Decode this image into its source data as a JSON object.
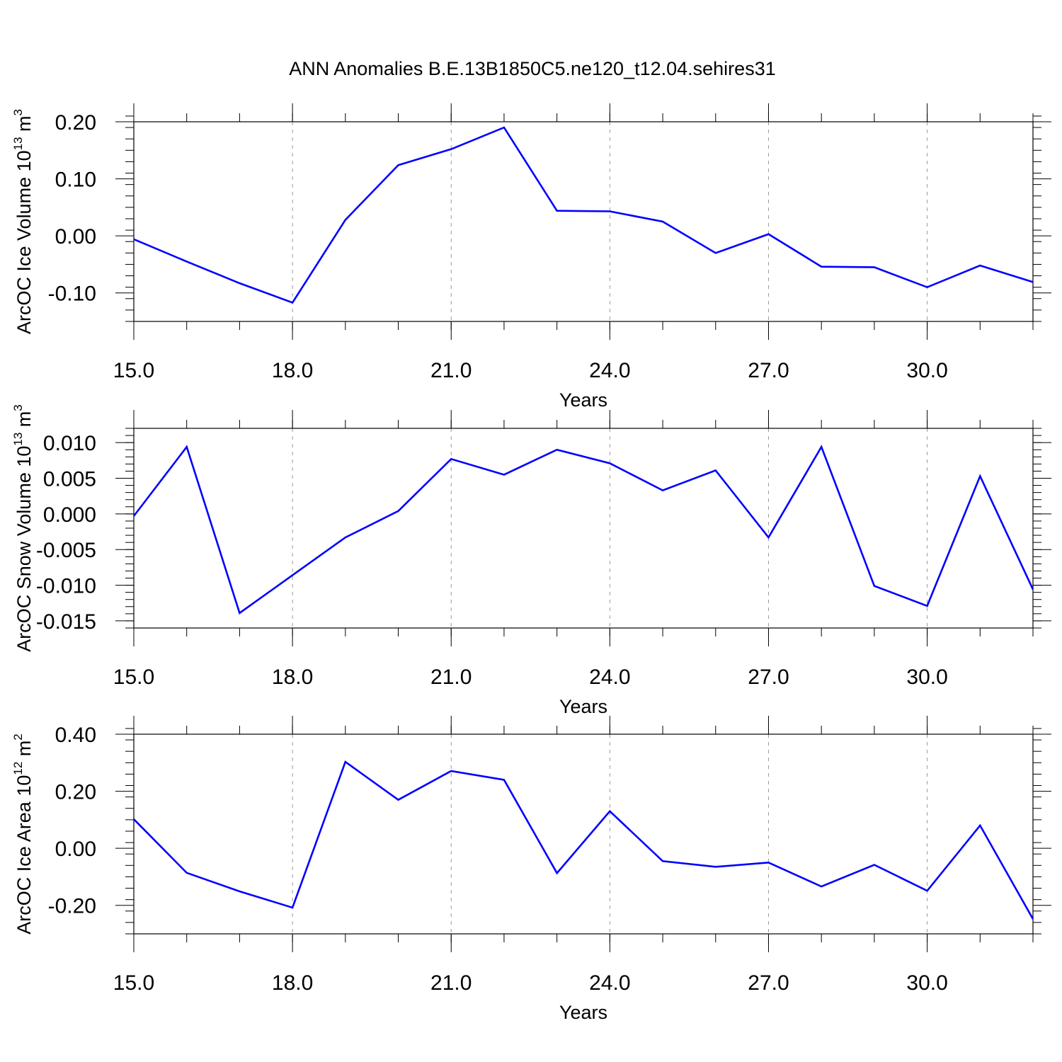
{
  "chart_data": [
    {
      "type": "line",
      "title": "ANN Anomalies B.E.13B1850C5.ne120_t12.04.sehires31",
      "ylabel": "ArcOC Ice Volume 10",
      "ylabel_exp": "13",
      "ylabel_unit": " m",
      "ylabel_unit_exp": "3",
      "xlabel": "Years",
      "xlim": [
        15,
        32
      ],
      "ylim": [
        -0.15,
        0.2
      ],
      "yticks": [
        0.2,
        0.1,
        0.0,
        -0.1
      ],
      "ytick_labels": [
        "0.20",
        "0.10",
        "0.00",
        "-0.10"
      ],
      "yminor_step": 0.02,
      "xticks": [
        15,
        18,
        21,
        24,
        27,
        30
      ],
      "xtick_labels": [
        "15.0",
        "18.0",
        "21.0",
        "24.0",
        "27.0",
        "30.0"
      ],
      "xminor_step": 1,
      "grid": "vertical-dashed",
      "color": "#0000ff",
      "x": [
        15,
        16,
        17,
        18,
        19,
        20,
        21,
        22,
        23,
        24,
        25,
        26,
        27,
        28,
        29,
        30,
        31,
        32
      ],
      "values": [
        -0.006,
        -0.045,
        -0.083,
        -0.117,
        0.028,
        0.124,
        0.152,
        0.19,
        0.044,
        0.043,
        0.025,
        -0.03,
        0.003,
        -0.054,
        -0.055,
        -0.09,
        -0.052,
        -0.081
      ]
    },
    {
      "type": "line",
      "title": "",
      "ylabel": "ArcOC Snow Volume 10",
      "ylabel_exp": "13",
      "ylabel_unit": " m",
      "ylabel_unit_exp": "3",
      "xlabel": "Years",
      "xlim": [
        15,
        32
      ],
      "ylim": [
        -0.016,
        0.012
      ],
      "yticks": [
        0.01,
        0.005,
        0.0,
        -0.005,
        -0.01,
        -0.015
      ],
      "ytick_labels": [
        "0.010",
        "0.005",
        "0.000",
        "-0.005",
        "-0.010",
        "-0.015"
      ],
      "yminor_step": 0.001,
      "xticks": [
        15,
        18,
        21,
        24,
        27,
        30
      ],
      "xtick_labels": [
        "15.0",
        "18.0",
        "21.0",
        "24.0",
        "27.0",
        "30.0"
      ],
      "xminor_step": 1,
      "grid": "vertical-dashed",
      "color": "#0000ff",
      "x": [
        15,
        16,
        17,
        18,
        19,
        20,
        21,
        22,
        23,
        24,
        25,
        26,
        27,
        28,
        29,
        30,
        31,
        32
      ],
      "values": [
        -0.0003,
        0.0094,
        -0.0139,
        -0.0086,
        -0.0033,
        0.0004,
        0.0077,
        0.0055,
        0.009,
        0.0071,
        0.0033,
        0.0061,
        -0.0033,
        0.0094,
        -0.0101,
        -0.0129,
        0.0053,
        -0.0106
      ]
    },
    {
      "type": "line",
      "title": "",
      "ylabel": "ArcOC Ice Area 10",
      "ylabel_exp": "12",
      "ylabel_unit": " m",
      "ylabel_unit_exp": "2",
      "xlabel": "Years",
      "xlim": [
        15,
        32
      ],
      "ylim": [
        -0.3,
        0.4
      ],
      "yticks": [
        0.4,
        0.2,
        0.0,
        -0.2
      ],
      "ytick_labels": [
        "0.40",
        "0.20",
        "0.00",
        "-0.20"
      ],
      "yminor_step": 0.04,
      "xticks": [
        15,
        18,
        21,
        24,
        27,
        30
      ],
      "xtick_labels": [
        "15.0",
        "18.0",
        "21.0",
        "24.0",
        "27.0",
        "30.0"
      ],
      "xminor_step": 1,
      "grid": "vertical-dashed",
      "color": "#0000ff",
      "x": [
        15,
        16,
        17,
        18,
        19,
        20,
        21,
        22,
        23,
        24,
        25,
        26,
        27,
        28,
        29,
        30,
        31,
        32
      ],
      "values": [
        0.102,
        -0.086,
        -0.151,
        -0.208,
        0.303,
        0.17,
        0.271,
        0.24,
        -0.087,
        0.13,
        -0.045,
        -0.065,
        -0.05,
        -0.134,
        -0.058,
        -0.149,
        0.08,
        -0.248
      ]
    }
  ]
}
